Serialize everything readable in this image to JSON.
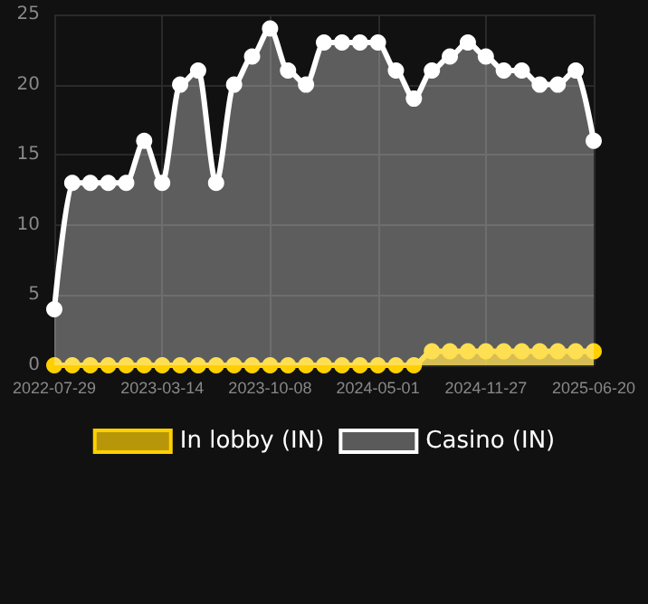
{
  "chart_data": {
    "type": "area",
    "categories": [
      "2022-07-29",
      null,
      null,
      null,
      null,
      null,
      "2023-03-14",
      null,
      null,
      null,
      null,
      null,
      "2023-10-08",
      null,
      null,
      null,
      null,
      null,
      "2024-05-01",
      null,
      null,
      null,
      null,
      null,
      "2024-11-27",
      null,
      null,
      null,
      null,
      null,
      "2025-06-20"
    ],
    "series": [
      {
        "name": "In lobby (IN)",
        "color": "#ffd000",
        "values": [
          0,
          0,
          0,
          0,
          0,
          0,
          0,
          0,
          0,
          0,
          0,
          0,
          0,
          0,
          0,
          0,
          0,
          0,
          0,
          0,
          0,
          1,
          1,
          1,
          1,
          1,
          1,
          1,
          1,
          1,
          1
        ]
      },
      {
        "name": "Casino (IN)",
        "color": "#ffffff",
        "values": [
          4,
          13,
          13,
          13,
          13,
          16,
          13,
          20,
          21,
          13,
          20,
          22,
          24,
          21,
          20,
          23,
          23,
          23,
          23,
          21,
          19,
          21,
          22,
          23,
          22,
          21,
          21,
          20,
          20,
          21,
          16
        ]
      }
    ],
    "ylim": [
      0,
      25
    ],
    "yticks": [
      0,
      5,
      10,
      15,
      20,
      25
    ],
    "grid": true,
    "legend": "bottom",
    "marker": "circle",
    "line_style": "solid"
  }
}
